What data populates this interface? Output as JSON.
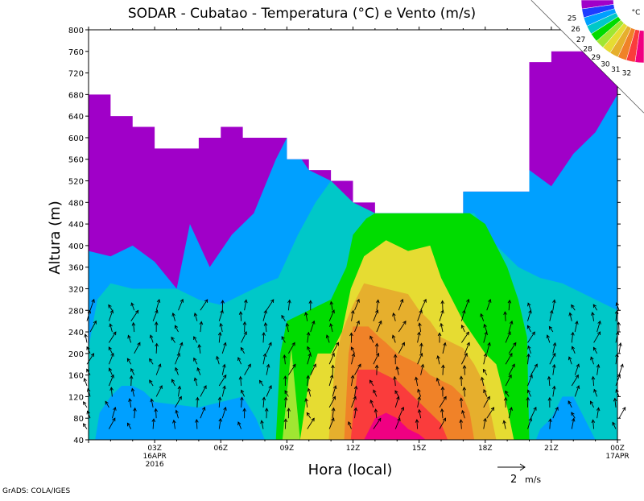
{
  "chart_data": {
    "type": "heatmap",
    "title": "SODAR - Cubatao - Temperatura (°C) e Vento (m/s)",
    "xlabel": "Hora (local)",
    "ylabel": "Altura (m)",
    "ylim": [
      40,
      800
    ],
    "xlim_hours": [
      0,
      24
    ],
    "y_ticks": [
      40,
      80,
      120,
      160,
      200,
      240,
      280,
      320,
      360,
      400,
      440,
      480,
      520,
      560,
      600,
      640,
      680,
      720,
      760,
      800
    ],
    "x_ticks": [
      {
        "hour": 3,
        "label": "03Z",
        "sub1": "16APR",
        "sub2": "2016"
      },
      {
        "hour": 6,
        "label": "06Z",
        "sub1": "",
        "sub2": ""
      },
      {
        "hour": 9,
        "label": "09Z",
        "sub1": "",
        "sub2": ""
      },
      {
        "hour": 12,
        "label": "12Z",
        "sub1": "",
        "sub2": ""
      },
      {
        "hour": 15,
        "label": "15Z",
        "sub1": "",
        "sub2": ""
      },
      {
        "hour": 18,
        "label": "18Z",
        "sub1": "",
        "sub2": ""
      },
      {
        "hour": 21,
        "label": "21Z",
        "sub1": "",
        "sub2": ""
      },
      {
        "hour": 24,
        "label": "00Z",
        "sub1": "17APR",
        "sub2": ""
      }
    ],
    "color_scale": {
      "unit": "°C",
      "labels": [
        "25",
        "26",
        "27",
        "28",
        "29",
        "30",
        "31",
        "32"
      ],
      "colors": [
        "#a000c8",
        "#1e3cff",
        "#00a0ff",
        "#00c8c8",
        "#00dc00",
        "#a0e632",
        "#e6dc32",
        "#e6af2d",
        "#f08228",
        "#fa3c3c",
        "#f00082"
      ]
    },
    "valid_top_m": [
      [
        0,
        680
      ],
      [
        1,
        640
      ],
      [
        2,
        620
      ],
      [
        3,
        580
      ],
      [
        4,
        580
      ],
      [
        5,
        600
      ],
      [
        6,
        620
      ],
      [
        7,
        600
      ],
      [
        8,
        600
      ],
      [
        9,
        560
      ],
      [
        10,
        540
      ],
      [
        11,
        520
      ],
      [
        12,
        480
      ],
      [
        13,
        460
      ],
      [
        14,
        460
      ],
      [
        15,
        460
      ],
      [
        16,
        460
      ],
      [
        17,
        500
      ],
      [
        18,
        500
      ],
      [
        19,
        500
      ],
      [
        20,
        740
      ],
      [
        21,
        760
      ],
      [
        22,
        760
      ],
      [
        23,
        760
      ],
      [
        24,
        760
      ]
    ],
    "isolines_m": [
      {
        "temp_class": 1,
        "color": "#00a0ff",
        "top": [
          [
            0,
            390
          ],
          [
            1,
            380
          ],
          [
            2,
            400
          ],
          [
            3,
            370
          ],
          [
            4,
            320
          ],
          [
            4.6,
            440
          ],
          [
            5.5,
            360
          ],
          [
            6.5,
            420
          ],
          [
            7.5,
            460
          ],
          [
            8.5,
            560
          ],
          [
            9,
            600
          ],
          [
            10,
            540
          ],
          [
            11,
            520
          ],
          [
            12,
            480
          ],
          [
            13,
            460
          ],
          [
            17,
            500
          ],
          [
            19,
            520
          ],
          [
            20,
            540
          ],
          [
            21,
            510
          ],
          [
            22,
            570
          ],
          [
            23,
            610
          ],
          [
            24,
            680
          ]
        ]
      },
      {
        "temp_class": 2,
        "color": "#00c8c8",
        "top": [
          [
            0,
            210
          ],
          [
            0.4,
            300
          ],
          [
            1,
            330
          ],
          [
            2,
            320
          ],
          [
            3,
            320
          ],
          [
            4,
            320
          ],
          [
            5,
            300
          ],
          [
            6,
            290
          ],
          [
            7,
            310
          ],
          [
            8,
            330
          ],
          [
            8.6,
            340
          ],
          [
            9.5,
            420
          ],
          [
            10.3,
            480
          ],
          [
            11,
            520
          ],
          [
            12,
            480
          ],
          [
            13,
            460
          ],
          [
            16.5,
            460
          ],
          [
            17.5,
            460
          ],
          [
            18.5,
            400
          ],
          [
            19.5,
            360
          ],
          [
            20.5,
            340
          ],
          [
            21.5,
            330
          ],
          [
            22.5,
            310
          ],
          [
            23.5,
            290
          ],
          [
            24,
            280
          ]
        ]
      },
      {
        "temp_class": 4,
        "color": "#00dc00",
        "top": [
          [
            8.5,
            40
          ],
          [
            8.7,
            200
          ],
          [
            9,
            260
          ],
          [
            10,
            280
          ],
          [
            11,
            300
          ],
          [
            11.7,
            360
          ],
          [
            12,
            420
          ],
          [
            12.6,
            450
          ],
          [
            13,
            460
          ],
          [
            16,
            460
          ],
          [
            17.3,
            460
          ],
          [
            18,
            440
          ],
          [
            19,
            360
          ],
          [
            19.5,
            300
          ],
          [
            19.9,
            230
          ],
          [
            20,
            40
          ]
        ]
      },
      {
        "temp_class": 5,
        "color": "#a0e632",
        "top": [
          [
            8.8,
            40
          ],
          [
            9.2,
            210
          ],
          [
            9.6,
            40
          ]
        ]
      },
      {
        "temp_class": 6,
        "color": "#e6dc32",
        "top": [
          [
            9.6,
            40
          ],
          [
            10,
            150
          ],
          [
            10.4,
            200
          ],
          [
            11,
            200
          ],
          [
            11.5,
            240
          ],
          [
            11.9,
            320
          ],
          [
            12.5,
            380
          ],
          [
            13.5,
            410
          ],
          [
            14.5,
            390
          ],
          [
            15.5,
            400
          ],
          [
            16,
            340
          ],
          [
            16.5,
            300
          ],
          [
            17,
            260
          ],
          [
            17.5,
            230
          ],
          [
            18,
            200
          ],
          [
            18.5,
            180
          ],
          [
            19,
            100
          ],
          [
            19.3,
            40
          ]
        ]
      },
      {
        "temp_class": 7,
        "color": "#e6af2d",
        "top": [
          [
            10.9,
            40
          ],
          [
            11.2,
            190
          ],
          [
            11.5,
            240
          ],
          [
            12,
            290
          ],
          [
            12.5,
            330
          ],
          [
            13.5,
            320
          ],
          [
            14.5,
            310
          ],
          [
            15,
            280
          ],
          [
            15.5,
            260
          ],
          [
            16,
            230
          ],
          [
            16.5,
            220
          ],
          [
            17,
            210
          ],
          [
            17.5,
            180
          ],
          [
            18,
            140
          ],
          [
            18.5,
            40
          ]
        ]
      },
      {
        "temp_class": 8,
        "color": "#f08228",
        "top": [
          [
            11.6,
            40
          ],
          [
            11.8,
            200
          ],
          [
            12,
            250
          ],
          [
            12.7,
            250
          ],
          [
            13.2,
            230
          ],
          [
            13.5,
            220
          ],
          [
            14,
            200
          ],
          [
            15,
            180
          ],
          [
            15.5,
            160
          ],
          [
            16,
            150
          ],
          [
            16.5,
            140
          ],
          [
            17,
            120
          ],
          [
            17.3,
            90
          ],
          [
            17.5,
            40
          ]
        ]
      },
      {
        "temp_class": 9,
        "color": "#fa3c3c",
        "top": [
          [
            11.9,
            40
          ],
          [
            12.2,
            170
          ],
          [
            13,
            170
          ],
          [
            13.5,
            160
          ],
          [
            14,
            150
          ],
          [
            14.5,
            130
          ],
          [
            15,
            110
          ],
          [
            15.5,
            90
          ],
          [
            16,
            70
          ],
          [
            16.3,
            40
          ]
        ]
      },
      {
        "temp_class": 10,
        "color": "#f00082",
        "top": [
          [
            12.5,
            40
          ],
          [
            13,
            80
          ],
          [
            13.5,
            90
          ],
          [
            14,
            80
          ],
          [
            14.5,
            60
          ],
          [
            15,
            50
          ],
          [
            15.3,
            40
          ]
        ]
      }
    ],
    "low_cold_patches_m": [
      {
        "color": "#a000c8",
        "top": [
          [
            2.5,
            40
          ],
          [
            2.7,
            90
          ],
          [
            3.3,
            100
          ],
          [
            4,
            90
          ],
          [
            5,
            80
          ],
          [
            5.8,
            70
          ],
          [
            6.5,
            80
          ],
          [
            7,
            90
          ],
          [
            7.5,
            60
          ],
          [
            7.8,
            40
          ]
        ]
      },
      {
        "color": "#00a0ff",
        "top": [
          [
            0.3,
            40
          ],
          [
            0.5,
            90
          ],
          [
            1,
            120
          ],
          [
            1.5,
            140
          ],
          [
            2,
            140
          ],
          [
            2.5,
            130
          ],
          [
            3,
            110
          ],
          [
            5,
            100
          ],
          [
            6,
            110
          ],
          [
            7,
            120
          ],
          [
            7.6,
            80
          ],
          [
            8,
            40
          ]
        ]
      },
      {
        "color": "#00a0ff",
        "top": [
          [
            20.3,
            40
          ],
          [
            20.5,
            60
          ],
          [
            21,
            80
          ],
          [
            21.5,
            120
          ],
          [
            22,
            120
          ],
          [
            22.5,
            80
          ],
          [
            23,
            40
          ]
        ]
      }
    ],
    "wind_vector_reference": {
      "label": "2",
      "unit": "m/s"
    },
    "wind_barb_levels_m": [
      60,
      80,
      100,
      120,
      140,
      160,
      180,
      200,
      220,
      240,
      260,
      280
    ],
    "wind_barb_times_h": [
      0,
      1,
      2,
      3,
      4,
      5,
      6,
      7,
      8,
      9,
      10,
      11,
      12,
      13,
      14,
      15,
      16,
      17,
      18,
      19,
      20,
      21,
      22,
      23,
      24
    ]
  },
  "footer": {
    "credit": "GrADS: COLA/IGES"
  }
}
